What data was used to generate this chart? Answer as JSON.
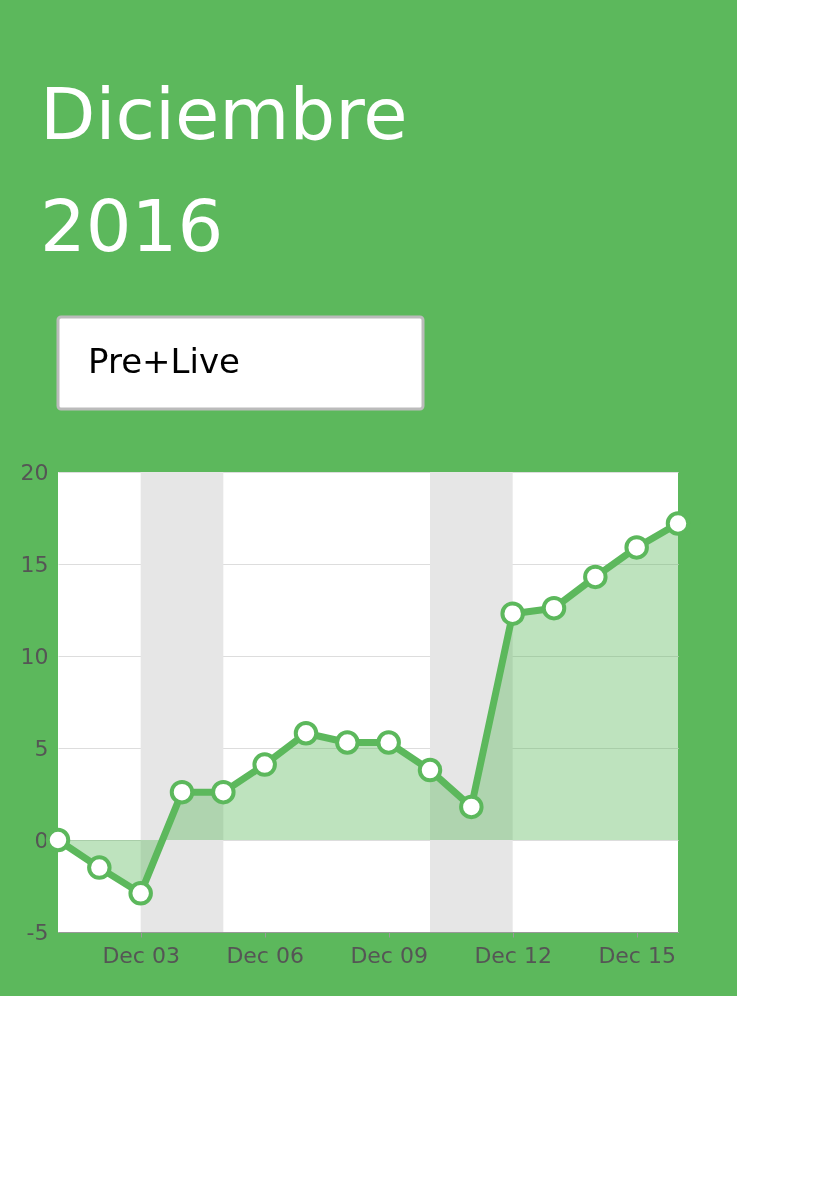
{
  "chart_data": {
    "type": "area",
    "title": "Diciembre",
    "subtitle": "2016",
    "annotations": [
      "Pre+Live"
    ],
    "x": [
      "2016-12-01",
      "2016-12-02",
      "2016-12-03",
      "2016-12-04",
      "2016-12-05",
      "2016-12-06",
      "2016-12-07",
      "2016-12-08",
      "2016-12-09",
      "2016-12-10",
      "2016-12-11",
      "2016-12-12",
      "2016-12-13",
      "2016-12-14",
      "2016-12-15",
      "2016-12-16"
    ],
    "series": [
      {
        "color": "#5cb85c",
        "values": [
          0,
          -1.5,
          -2.9,
          2.6,
          2.6,
          4.1,
          5.8,
          5.3,
          5.3,
          3.8,
          1.8,
          12.3,
          12.6,
          14.3,
          15.9,
          17.2
        ]
      }
    ],
    "xlim": [
      "2016-12-01",
      "2016-12-16"
    ],
    "xticks": [
      {
        "value": "2016-12-03",
        "label": "Dec 03"
      },
      {
        "value": "2016-12-06",
        "label": "Dec 06"
      },
      {
        "value": "2016-12-09",
        "label": "Dec 09"
      },
      {
        "value": "2016-12-12",
        "label": "Dec 12"
      },
      {
        "value": "2016-12-15",
        "label": "Dec 15"
      }
    ],
    "ylim": [
      -5,
      20
    ],
    "yticks": [
      -5,
      0,
      5,
      10,
      15,
      20
    ],
    "bands": [
      {
        "axis": "x",
        "from": "2016-12-03",
        "to": "2016-12-05",
        "color": "#e6e6e6"
      },
      {
        "axis": "x",
        "from": "2016-12-10",
        "to": "2016-12-12",
        "color": "#e6e6e6"
      }
    ],
    "grid": "y",
    "legend": false,
    "marker": "circle",
    "line_style": "solid"
  }
}
